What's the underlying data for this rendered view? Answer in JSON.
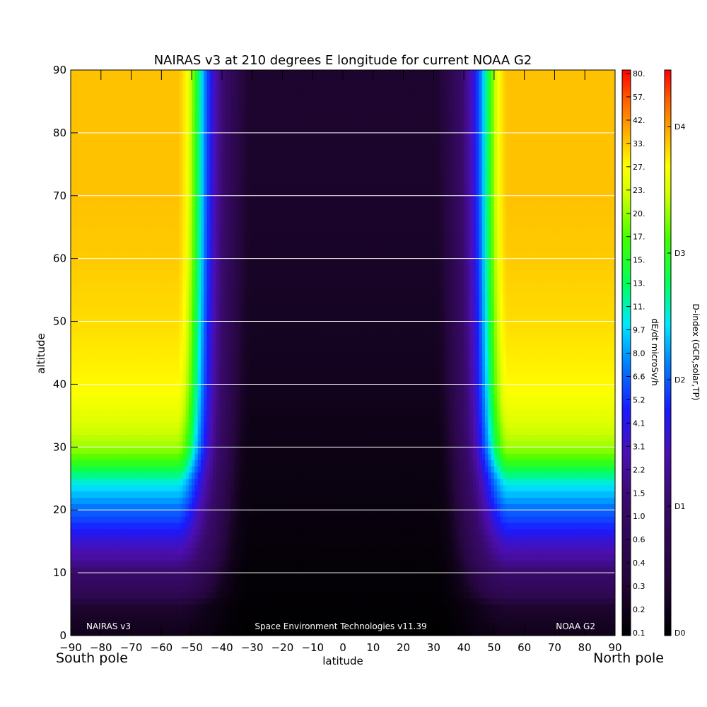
{
  "chart_data": {
    "type": "heatmap",
    "title": "NAIRAS v3 at 210 degrees E longitude for current NOAA G2",
    "xlabel": "latitude",
    "ylabel": "altitude",
    "x_ticks": [
      "-90",
      "-80",
      "-70",
      "-60",
      "-50",
      "-40",
      "-30",
      "-20",
      "-10",
      "0",
      "10",
      "20",
      "30",
      "40",
      "50",
      "60",
      "70",
      "80",
      "90"
    ],
    "y_ticks": [
      "0",
      "10",
      "20",
      "30",
      "40",
      "50",
      "60",
      "70",
      "80",
      "90"
    ],
    "xlim": [
      -90,
      90
    ],
    "ylim": [
      0,
      90
    ],
    "grid": "horizontal lines every 10",
    "corner_labels": {
      "left": "South pole",
      "right": "North pole"
    },
    "annotations": {
      "left": "NAIRAS v3",
      "center": "Space Environment Technologies v11.39",
      "right": "NOAA G2"
    },
    "field_description": {
      "low_latitude_band": [
        -30,
        30
      ],
      "transition_latitude_abs": [
        30,
        55
      ],
      "high_latitude_level_abs_ge_60": {
        "altitude": [
          0,
          5,
          10,
          15,
          20,
          25,
          30,
          35,
          40,
          50,
          60,
          70,
          80,
          90
        ],
        "dose_rate": [
          0.2,
          0.3,
          1.2,
          3.5,
          6.6,
          11,
          20,
          24,
          27,
          30,
          32,
          33,
          33,
          33
        ]
      },
      "equator_level": {
        "altitude": [
          0,
          10,
          20,
          30,
          40,
          60,
          90
        ],
        "dose_rate": [
          0.1,
          0.12,
          0.15,
          0.18,
          0.22,
          0.26,
          0.3
        ]
      }
    },
    "colorbar_dose": {
      "label": "dE/dt microSv/h",
      "ticks": [
        "0.1",
        "0.2",
        "0.3",
        "0.4",
        "0.6",
        "1.0",
        "1.5",
        "2.2",
        "3.1",
        "4.1",
        "5.2",
        "6.6",
        "8.0",
        "9.7",
        "11.",
        "13.",
        "15.",
        "17.",
        "20.",
        "23.",
        "27.",
        "33.",
        "42.",
        "57.",
        "80."
      ]
    },
    "colorbar_dindex": {
      "label": "D-index (GCR,solar,TP)",
      "ticks": [
        "D0",
        "D1",
        "D2",
        "D3",
        "D4"
      ]
    }
  }
}
